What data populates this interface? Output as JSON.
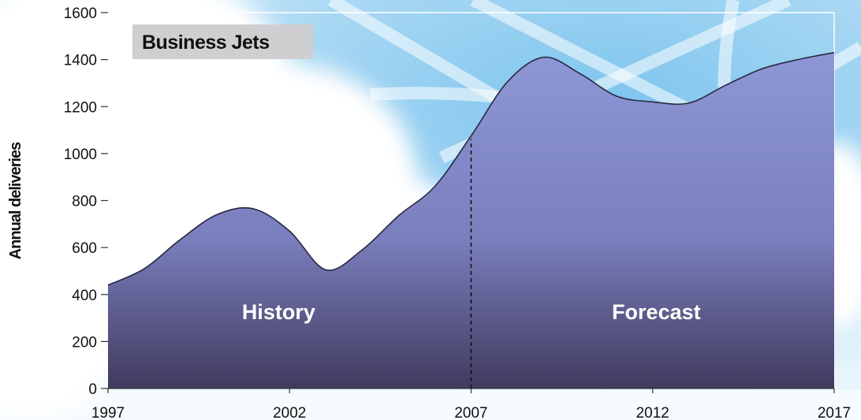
{
  "chart_data": {
    "type": "area",
    "title": "Business Jets",
    "xlabel": "",
    "ylabel": "Annual deliveries",
    "x": [
      1997,
      1998,
      1999,
      2000,
      2001,
      2002,
      2003,
      2004,
      2005,
      2006,
      2007,
      2008,
      2009,
      2010,
      2011,
      2012,
      2013,
      2014,
      2015,
      2016,
      2017
    ],
    "values": [
      440,
      510,
      635,
      740,
      765,
      670,
      505,
      590,
      735,
      860,
      1075,
      1305,
      1410,
      1340,
      1245,
      1220,
      1215,
      1290,
      1360,
      1400,
      1430
    ],
    "xlim": [
      1997,
      2017
    ],
    "ylim": [
      0,
      1600
    ],
    "xticks": [
      "1997",
      "2002",
      "2007",
      "2012",
      "2017"
    ],
    "yticks": [
      "0",
      "200",
      "400",
      "600",
      "800",
      "1000",
      "1200",
      "1400",
      "1600"
    ],
    "divider_x": 2007,
    "regions": [
      {
        "label": "History",
        "x": 2001.7
      },
      {
        "label": "Forecast",
        "x": 2012.1
      }
    ],
    "grid": false,
    "colors": {
      "fill_top": "#8e97d6",
      "fill_bottom": "#403a5e",
      "outline": "#2a2840",
      "title_box": "#cfcfd2"
    }
  }
}
